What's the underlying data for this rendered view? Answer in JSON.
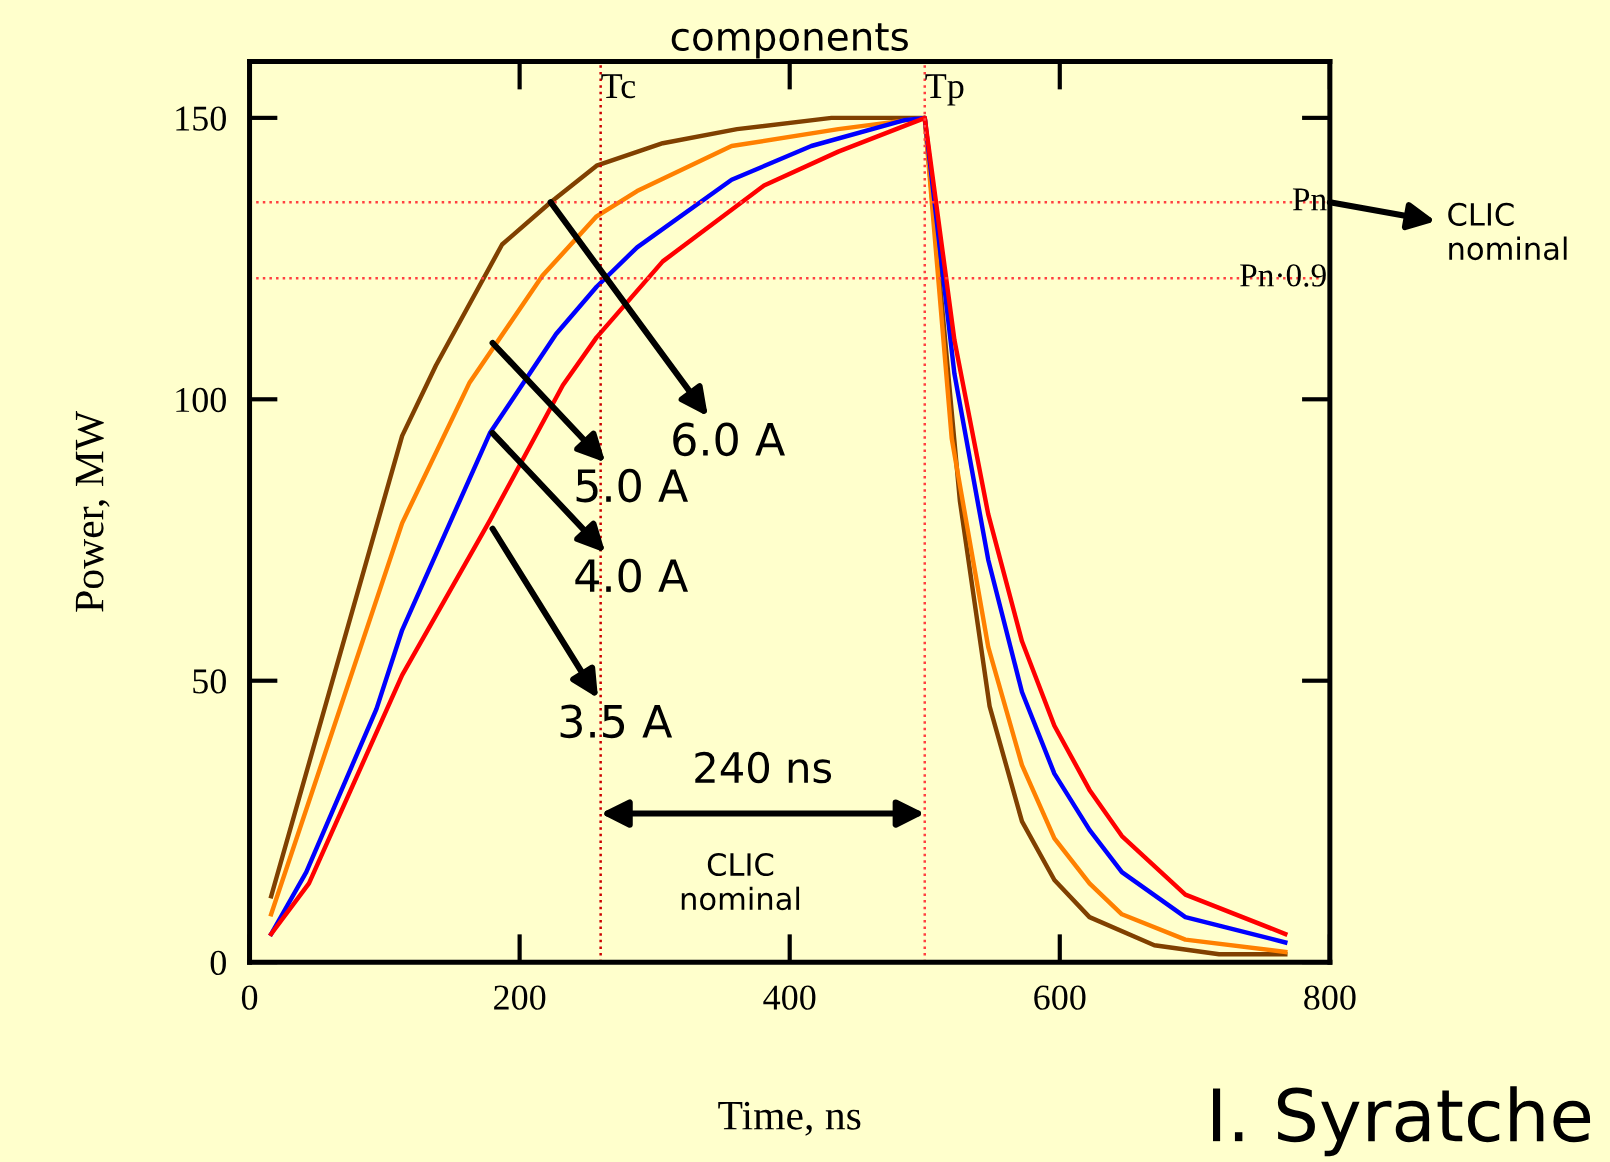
{
  "chart_data": {
    "type": "line",
    "title": "components",
    "xlabel": "Time, ns",
    "ylabel": "Power, MW",
    "xlim": [
      0,
      800
    ],
    "xticks": [
      0,
      200,
      400,
      600,
      800
    ],
    "ylim": [
      0,
      160
    ],
    "yticks": [
      0,
      50,
      100,
      150
    ],
    "grid": false,
    "legend": false,
    "marker": "none",
    "line_style": "solid",
    "series": [
      {
        "color": "#804000",
        "x": [
          16,
          113,
          138,
          187,
          223,
          257,
          306,
          361,
          431,
          500,
          526,
          548,
          572,
          596,
          622,
          670,
          718,
          767
        ],
        "values": [
          11.7,
          93.5,
          106,
          127.5,
          135,
          141.5,
          145.5,
          148,
          150,
          150,
          82,
          45.5,
          25,
          14.6,
          8,
          3,
          1.4,
          1.4
        ]
      },
      {
        "color": "#ff8000",
        "x": [
          16,
          113,
          163,
          217,
          257,
          287,
          357,
          436,
          500,
          520,
          547,
          572,
          596,
          622,
          646,
          693,
          767
        ],
        "values": [
          8.5,
          78,
          103,
          122,
          132.5,
          137,
          145,
          148,
          150,
          93,
          56,
          35,
          22,
          14,
          8.5,
          4,
          1.8
        ]
      },
      {
        "color": "#0000ff",
        "x": [
          16,
          42,
          94,
          113,
          178,
          227,
          257,
          287,
          357,
          416,
          485,
          500,
          522,
          547,
          572,
          596,
          622,
          646,
          693,
          767
        ],
        "values": [
          5,
          16,
          45,
          59,
          94,
          111.6,
          120,
          127,
          139,
          145,
          149.6,
          150,
          104.5,
          71.5,
          48,
          33.5,
          23.5,
          16,
          8,
          3.5
        ]
      },
      {
        "color": "#ff0000",
        "x": [
          16,
          44,
          113,
          178,
          232,
          257,
          306,
          381,
          436,
          496,
          500,
          522,
          547,
          572,
          596,
          622,
          646,
          693,
          767
        ],
        "values": [
          5,
          14,
          51,
          78.5,
          102.5,
          111,
          124.5,
          138,
          144,
          149.6,
          150,
          110.5,
          79.6,
          57,
          42,
          30.6,
          22.4,
          12,
          5
        ]
      }
    ],
    "ref_lines": [
      {
        "axis": "y",
        "value": 135,
        "label": "Pn",
        "color": "#ff4040",
        "line_style": "dotted"
      },
      {
        "axis": "y",
        "value": 121.5,
        "label": "Pn·0.9",
        "color": "#ff4040",
        "line_style": "dotted"
      },
      {
        "axis": "x",
        "value": 260,
        "label": "Tc",
        "color": "#cc0000",
        "line_style": "dotted"
      },
      {
        "axis": "x",
        "value": 500,
        "label": "Tp",
        "color": "#ff4040",
        "line_style": "dotted"
      }
    ],
    "annotations": [
      {
        "text": "6.0 A",
        "x": 223,
        "y": 135
      },
      {
        "text": "5.0 A",
        "x": 180,
        "y": 110
      },
      {
        "text": "4.0 A",
        "x": 180,
        "y": 94
      },
      {
        "text": "3.5 A",
        "x": 180,
        "y": 77
      },
      "240 ns",
      "CLIC\nnominal",
      {
        "text": "CLIC\nnominal",
        "x": 800,
        "y": 135
      },
      "I. Syratche"
    ]
  }
}
